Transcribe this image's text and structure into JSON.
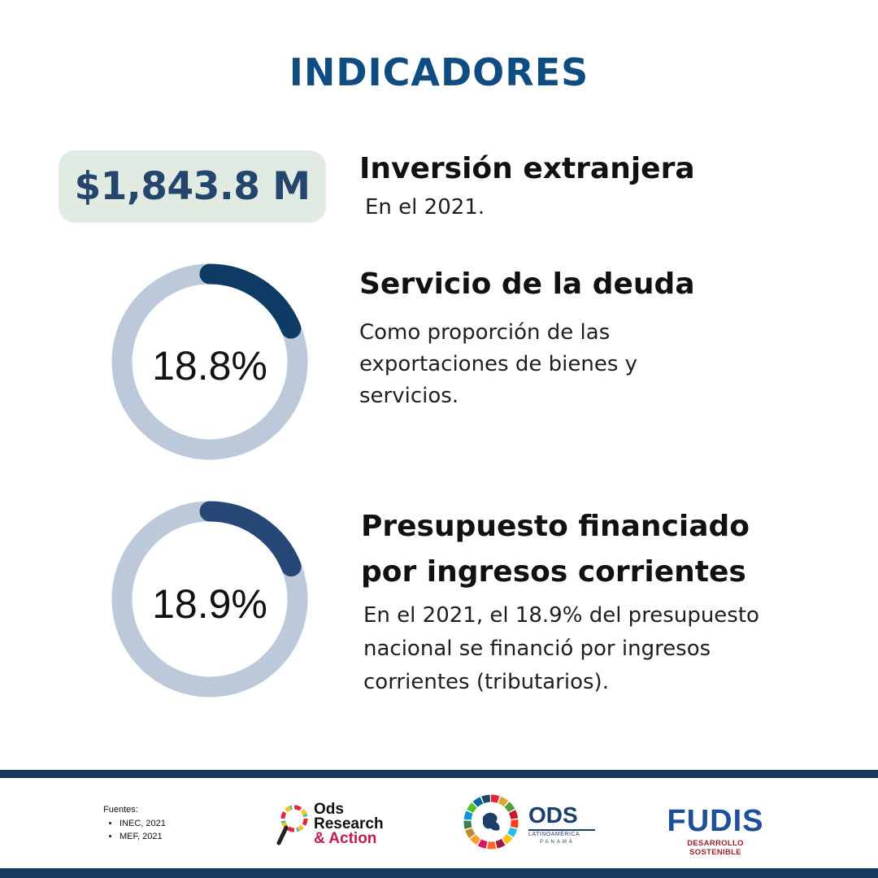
{
  "title": "INDICADORES",
  "indicators": {
    "inversion": {
      "value": "$1,843.8 M",
      "heading": "Inversión extranjera",
      "description": "En el 2021."
    },
    "servicio": {
      "percent_label": "18.8%",
      "fill": 0.188,
      "heading": "Servicio de la deuda",
      "description": "Como proporción de las exportaciones de bienes y servicios."
    },
    "presupuesto": {
      "percent_label": "18.9%",
      "fill": 0.189,
      "heading": "Presupuesto financiado por ingresos corrientes",
      "description": "En el 2021, el 18.9% del presupuesto nacional se financió por ingresos corrientes (tributarios)."
    }
  },
  "footer": {
    "sources_title": "Fuentes:",
    "sources": [
      "INEC, 2021",
      "MEF, 2021"
    ],
    "logos": {
      "ods_research": {
        "line1": "Ods",
        "line2": "Research",
        "line3": "& Action"
      },
      "ods_latam": {
        "main": "ODS",
        "sub": "LATINOAMÉRICA",
        "country": "PANAMÁ"
      },
      "fudis": {
        "word": "FUDIS",
        "tagline": "DESARROLLO SOSTENIBLE"
      }
    }
  },
  "colors": {
    "title": "#0f4c81",
    "pill_bg": "#e1ebe2",
    "pill_text": "#24456e",
    "donut_track": "#bcc9da",
    "donut1_fill": "#0d3b66",
    "donut2_fill": "#274876",
    "band": "#16395f"
  }
}
